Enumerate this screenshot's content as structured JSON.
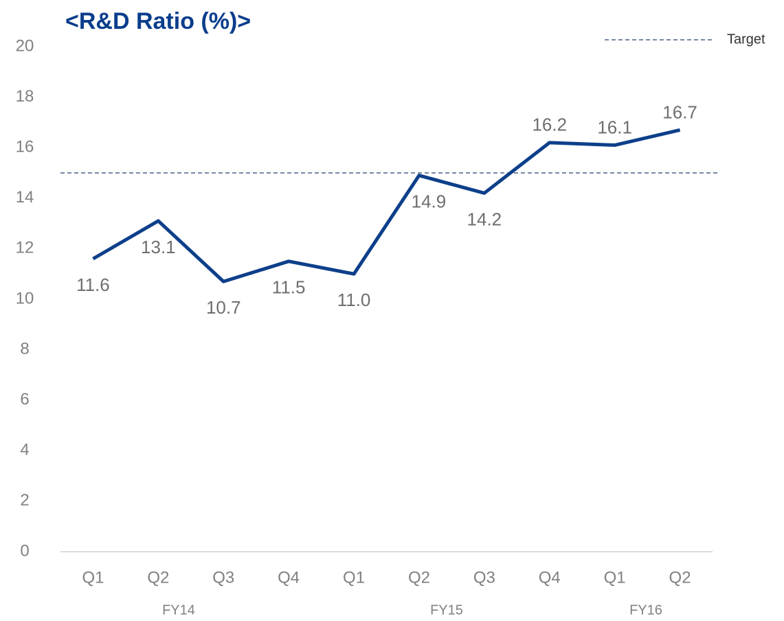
{
  "chart_data": {
    "type": "line",
    "title": "<R&D Ratio (%)>",
    "categories": [
      "Q1",
      "Q2",
      "Q3",
      "Q4",
      "Q1",
      "Q2",
      "Q3",
      "Q4",
      "Q1",
      "Q2"
    ],
    "groups": [
      "FY14",
      "FY15",
      "FY16"
    ],
    "series": [
      {
        "name": "R&D Ratio",
        "color": "#0d3f8a",
        "values": [
          11.6,
          13.1,
          10.7,
          11.5,
          11.0,
          14.9,
          14.2,
          16.2,
          16.1,
          16.7
        ],
        "value_labels": [
          "11.6",
          "13.1",
          "10.7",
          "11.5",
          "11.0",
          "14.9",
          "14.2",
          "16.2",
          "16.1",
          "16.7"
        ]
      }
    ],
    "target": {
      "name": "Target",
      "value": 15,
      "color": "#4a6185"
    },
    "ylim": [
      0,
      20
    ],
    "yticks": [
      0,
      2,
      4,
      6,
      8,
      10,
      12,
      14,
      16,
      18,
      20
    ],
    "legend": "top-right"
  }
}
